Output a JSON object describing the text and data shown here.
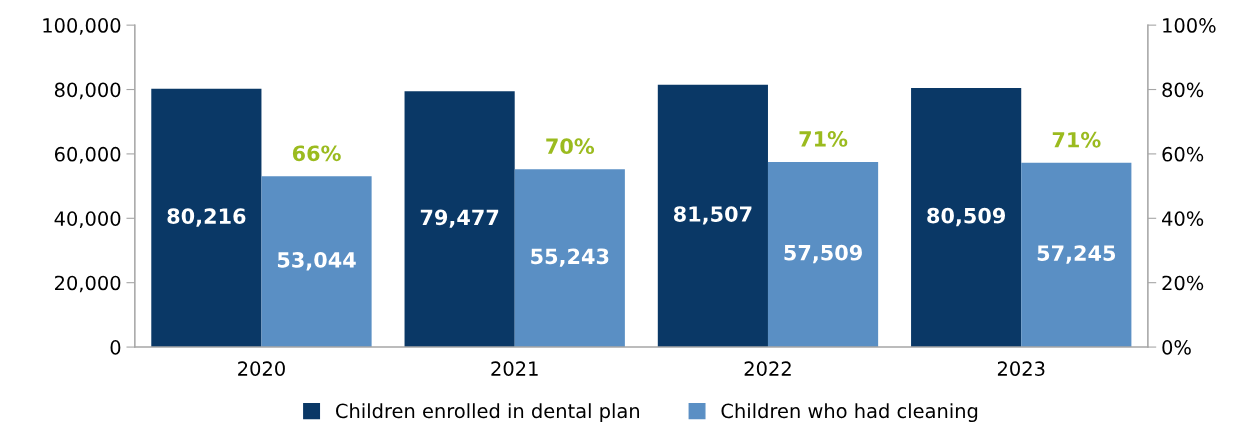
{
  "chart_data": {
    "type": "bar",
    "categories": [
      "2020",
      "2021",
      "2022",
      "2023"
    ],
    "series": [
      {
        "name": "Children enrolled in dental plan",
        "color": "#0a3866",
        "values": [
          80216,
          79477,
          81507,
          80509
        ],
        "value_labels": [
          "80,216",
          "79,477",
          "81,507",
          "80,509"
        ]
      },
      {
        "name": "Children who had cleaning",
        "color": "#5a8fc4",
        "values": [
          53044,
          55243,
          57509,
          57245
        ],
        "value_labels": [
          "53,044",
          "55,243",
          "57,509",
          "57,245"
        ]
      }
    ],
    "ylim": [
      0,
      100000
    ],
    "yticks": [
      {
        "value": 0,
        "label": "0"
      },
      {
        "value": 20000,
        "label": "20,000"
      },
      {
        "value": 40000,
        "label": "40,000"
      },
      {
        "value": 60000,
        "label": "60,000"
      },
      {
        "value": 80000,
        "label": "80,000"
      },
      {
        "value": 100000,
        "label": "100,000"
      }
    ],
    "y2lim": [
      0,
      100
    ],
    "y2ticks": [
      {
        "value": 0,
        "label": "0%"
      },
      {
        "value": 20,
        "label": "20%"
      },
      {
        "value": 40,
        "label": "40%"
      },
      {
        "value": 60,
        "label": "60%"
      },
      {
        "value": 80,
        "label": "80%"
      },
      {
        "value": 100,
        "label": "100%"
      }
    ],
    "annotations": [
      {
        "text": "66%",
        "x": "2020",
        "y": 53044
      },
      {
        "text": "70%",
        "x": "2021",
        "y": 55243
      },
      {
        "text": "71%",
        "x": "2022",
        "y": 57509
      },
      {
        "text": "71%",
        "x": "2023",
        "y": 57245
      }
    ],
    "grid": false,
    "legend": "bottom"
  }
}
